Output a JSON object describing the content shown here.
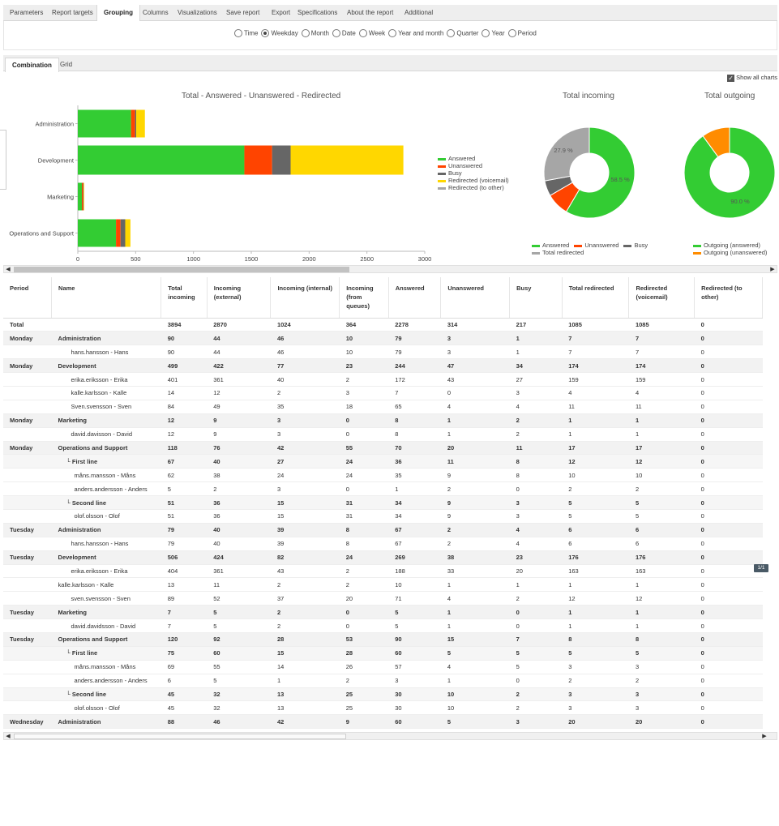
{
  "top_tabs": [
    {
      "label": "Parameters",
      "active": false
    },
    {
      "label": "Report targets",
      "active": false
    },
    {
      "label": "Grouping",
      "active": true
    },
    {
      "label": "Columns",
      "active": false
    },
    {
      "label": "Visualizations",
      "active": false
    },
    {
      "label": "Save report",
      "active": false
    },
    {
      "label": "Export",
      "active": false
    },
    {
      "label": "Specifications",
      "active": false
    },
    {
      "label": "About the report",
      "active": false
    },
    {
      "label": "Additional",
      "active": false
    }
  ],
  "grouping": {
    "options": [
      {
        "label": "Time",
        "selected": false
      },
      {
        "label": "Weekday",
        "selected": true
      },
      {
        "label": "Month",
        "selected": false
      },
      {
        "label": "Date",
        "selected": false
      },
      {
        "label": "Week",
        "selected": false
      },
      {
        "label": "Year and month",
        "selected": false
      },
      {
        "label": "Quarter",
        "selected": false
      },
      {
        "label": "Year",
        "selected": false
      },
      {
        "label": "Period",
        "selected": false
      }
    ]
  },
  "sub_tabs": [
    {
      "label": "Combination",
      "active": true
    },
    {
      "label": "Grid",
      "active": false
    }
  ],
  "show_all_charts": {
    "label": "Show all charts",
    "checked": true
  },
  "colors": {
    "answered": "#33cc33",
    "unanswered": "#ff4400",
    "busy": "#666666",
    "redirected_voicemail": "#ffd700",
    "redirected_other": "#a6a6a6",
    "outgoing_unanswered": "#ff8c00"
  },
  "chart_data": [
    {
      "type": "bar",
      "orientation": "horizontal",
      "stacked": true,
      "title": "Total - Answered - Unanswered - Redirected",
      "categories": [
        "Administration",
        "Development",
        "Marketing",
        "Operations and Support"
      ],
      "series": [
        {
          "name": "Answered",
          "values": [
            460,
            1440,
            35,
            330
          ]
        },
        {
          "name": "Unanswered",
          "values": [
            35,
            240,
            10,
            40
          ]
        },
        {
          "name": "Busy",
          "values": [
            10,
            160,
            5,
            40
          ]
        },
        {
          "name": "Redirected (voicemail)",
          "values": [
            75,
            975,
            5,
            45
          ]
        },
        {
          "name": "Redirected (to other)",
          "values": [
            0,
            0,
            0,
            0
          ]
        }
      ],
      "xticks": [
        "0",
        "500",
        "1000",
        "1500",
        "2000",
        "2500",
        "3000"
      ],
      "xlim": [
        0,
        3000
      ],
      "legend": "right"
    },
    {
      "type": "pie",
      "title": "Total incoming",
      "slices": [
        {
          "name": "Answered",
          "value": 58.5,
          "label": "58.5 %"
        },
        {
          "name": "Unanswered",
          "value": 8.1
        },
        {
          "name": "Busy",
          "value": 5.5
        },
        {
          "name": "Total redirected",
          "value": 27.9,
          "label": "27.9 %"
        }
      ],
      "legend": "bottom"
    },
    {
      "type": "pie",
      "title": "Total outgoing",
      "slices": [
        {
          "name": "Outgoing (answered)",
          "value": 90.0,
          "label": "90.0 %"
        },
        {
          "name": "Outgoing (unanswered)",
          "value": 10.0
        }
      ],
      "legend": "bottom"
    }
  ],
  "table": {
    "columns": [
      "Period",
      "Name",
      "Total incoming",
      "Incoming (external)",
      "Incoming (internal)",
      "Incoming (from queues)",
      "Answered",
      "Unanswered",
      "Busy",
      "Total redirected",
      "Redirected (voicemail)",
      "Redirected (to other)"
    ],
    "rows": [
      {
        "level": 0,
        "cells": [
          "Total",
          "",
          "3894",
          "2870",
          "1024",
          "364",
          "2278",
          "314",
          "217",
          "1085",
          "1085",
          "0"
        ]
      },
      {
        "level": 1,
        "cells": [
          "Monday",
          "Administration",
          "90",
          "44",
          "46",
          "10",
          "79",
          "3",
          "1",
          "7",
          "7",
          "0"
        ]
      },
      {
        "level": 3,
        "indent": 2,
        "cells": [
          "",
          "hans.hansson - Hans",
          "90",
          "44",
          "46",
          "10",
          "79",
          "3",
          "1",
          "7",
          "7",
          "0"
        ]
      },
      {
        "level": 1,
        "cells": [
          "Monday",
          "Development",
          "499",
          "422",
          "77",
          "23",
          "244",
          "47",
          "34",
          "174",
          "174",
          "0"
        ]
      },
      {
        "level": 3,
        "indent": 2,
        "cells": [
          "",
          "erika.eriksson - Erika",
          "401",
          "361",
          "40",
          "2",
          "172",
          "43",
          "27",
          "159",
          "159",
          "0"
        ]
      },
      {
        "level": 3,
        "indent": 2,
        "cells": [
          "",
          "kalle.karlsson - Kalle",
          "14",
          "12",
          "2",
          "3",
          "7",
          "0",
          "3",
          "4",
          "4",
          "0"
        ]
      },
      {
        "level": 3,
        "indent": 2,
        "cells": [
          "",
          "Sven.svensson - Sven",
          "84",
          "49",
          "35",
          "18",
          "65",
          "4",
          "4",
          "11",
          "11",
          "0"
        ]
      },
      {
        "level": 1,
        "cells": [
          "Monday",
          "Marketing",
          "12",
          "9",
          "3",
          "0",
          "8",
          "1",
          "2",
          "1",
          "1",
          "0"
        ]
      },
      {
        "level": 3,
        "indent": 2,
        "cells": [
          "",
          "david.davisson - David",
          "12",
          "9",
          "3",
          "0",
          "8",
          "1",
          "2",
          "1",
          "1",
          "0"
        ]
      },
      {
        "level": 1,
        "cells": [
          "Monday",
          "Operations and Support",
          "118",
          "76",
          "42",
          "55",
          "70",
          "20",
          "11",
          "17",
          "17",
          "0"
        ]
      },
      {
        "level": 2,
        "indent": 1,
        "cells": [
          "",
          "└ First line",
          "67",
          "40",
          "27",
          "24",
          "36",
          "11",
          "8",
          "12",
          "12",
          "0"
        ]
      },
      {
        "level": 3,
        "indent": 3,
        "cells": [
          "",
          "måns.mansson - Måns",
          "62",
          "38",
          "24",
          "24",
          "35",
          "9",
          "8",
          "10",
          "10",
          "0"
        ]
      },
      {
        "level": 3,
        "indent": 3,
        "cells": [
          "",
          "anders.andersson - Anders",
          "5",
          "2",
          "3",
          "0",
          "1",
          "2",
          "0",
          "2",
          "2",
          "0"
        ]
      },
      {
        "level": 2,
        "indent": 1,
        "cells": [
          "",
          "└ Second line",
          "51",
          "36",
          "15",
          "31",
          "34",
          "9",
          "3",
          "5",
          "5",
          "0"
        ]
      },
      {
        "level": 3,
        "indent": 3,
        "cells": [
          "",
          "olof.olsson - Olof",
          "51",
          "36",
          "15",
          "31",
          "34",
          "9",
          "3",
          "5",
          "5",
          "0"
        ]
      },
      {
        "level": 1,
        "cells": [
          "Tuesday",
          "Administration",
          "79",
          "40",
          "39",
          "8",
          "67",
          "2",
          "4",
          "6",
          "6",
          "0"
        ]
      },
      {
        "level": 3,
        "indent": 2,
        "cells": [
          "",
          "hans.hansson - Hans",
          "79",
          "40",
          "39",
          "8",
          "67",
          "2",
          "4",
          "6",
          "6",
          "0"
        ]
      },
      {
        "level": 1,
        "cells": [
          "Tuesday",
          "Development",
          "506",
          "424",
          "82",
          "24",
          "269",
          "38",
          "23",
          "176",
          "176",
          "0"
        ]
      },
      {
        "level": 3,
        "indent": 2,
        "cells": [
          "",
          "erika.eriksson - Erika",
          "404",
          "361",
          "43",
          "2",
          "188",
          "33",
          "20",
          "163",
          "163",
          "0"
        ]
      },
      {
        "level": 3,
        "indent": 0,
        "cells": [
          "",
          "kalle.karlsson - Kalle",
          "13",
          "11",
          "2",
          "2",
          "10",
          "1",
          "1",
          "1",
          "1",
          "0"
        ]
      },
      {
        "level": 3,
        "indent": 2,
        "cells": [
          "",
          "sven.svensson - Sven",
          "89",
          "52",
          "37",
          "20",
          "71",
          "4",
          "2",
          "12",
          "12",
          "0"
        ]
      },
      {
        "level": 1,
        "cells": [
          "Tuesday",
          "Marketing",
          "7",
          "5",
          "2",
          "0",
          "5",
          "1",
          "0",
          "1",
          "1",
          "0"
        ]
      },
      {
        "level": 3,
        "indent": 2,
        "cells": [
          "",
          "david.davidsson - David",
          "7",
          "5",
          "2",
          "0",
          "5",
          "1",
          "0",
          "1",
          "1",
          "0"
        ]
      },
      {
        "level": 1,
        "cells": [
          "Tuesday",
          "Operations and Support",
          "120",
          "92",
          "28",
          "53",
          "90",
          "15",
          "7",
          "8",
          "8",
          "0"
        ]
      },
      {
        "level": 2,
        "indent": 1,
        "cells": [
          "",
          "└ First line",
          "75",
          "60",
          "15",
          "28",
          "60",
          "5",
          "5",
          "5",
          "5",
          "0"
        ]
      },
      {
        "level": 3,
        "indent": 3,
        "cells": [
          "",
          "måns.mansson - Måns",
          "69",
          "55",
          "14",
          "26",
          "57",
          "4",
          "5",
          "3",
          "3",
          "0"
        ]
      },
      {
        "level": 3,
        "indent": 3,
        "cells": [
          "",
          "anders.andersson - Anders",
          "6",
          "5",
          "1",
          "2",
          "3",
          "1",
          "0",
          "2",
          "2",
          "0"
        ]
      },
      {
        "level": 2,
        "indent": 1,
        "cells": [
          "",
          "└ Second line",
          "45",
          "32",
          "13",
          "25",
          "30",
          "10",
          "2",
          "3",
          "3",
          "0"
        ]
      },
      {
        "level": 3,
        "indent": 3,
        "cells": [
          "",
          "olof.olsson - Olof",
          "45",
          "32",
          "13",
          "25",
          "30",
          "10",
          "2",
          "3",
          "3",
          "0"
        ]
      },
      {
        "level": 1,
        "cells": [
          "Wednesday",
          "Administration",
          "88",
          "46",
          "42",
          "9",
          "60",
          "5",
          "3",
          "20",
          "20",
          "0"
        ]
      }
    ]
  },
  "pager": {
    "label": "1/1"
  }
}
